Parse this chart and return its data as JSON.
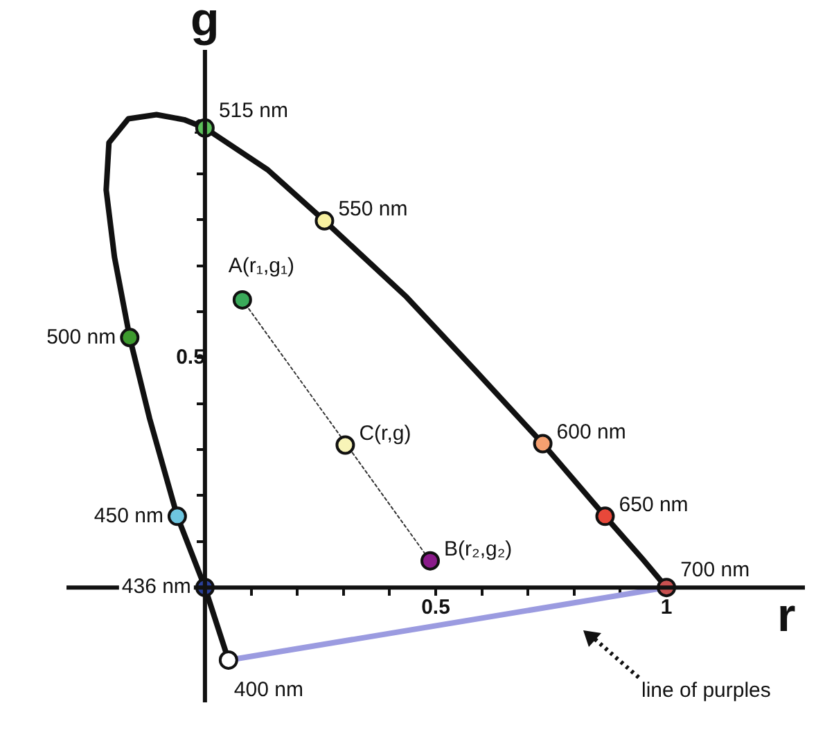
{
  "chart_data": {
    "type": "line",
    "xlabel": "r",
    "ylabel": "g",
    "xlim": [
      -0.3,
      1.3
    ],
    "ylim": [
      -0.25,
      1.17
    ],
    "xticks": [
      {
        "value": 0.1,
        "label": null
      },
      {
        "value": 0.2,
        "label": null
      },
      {
        "value": 0.3,
        "label": null
      },
      {
        "value": 0.4,
        "label": null
      },
      0.5,
      {
        "value": 0.6,
        "label": null
      },
      {
        "value": 0.7,
        "label": null
      },
      {
        "value": 0.8,
        "label": null
      },
      {
        "value": 0.9,
        "label": null
      },
      1
    ],
    "yticks": [
      {
        "value": 0.1,
        "label": null
      },
      {
        "value": 0.2,
        "label": null
      },
      {
        "value": 0.3,
        "label": null
      },
      {
        "value": 0.4,
        "label": null
      },
      0.5,
      {
        "value": 0.6,
        "label": null
      },
      {
        "value": 0.7,
        "label": null
      },
      {
        "value": 0.8,
        "label": null
      },
      {
        "value": 0.9,
        "label": null
      },
      1
    ],
    "grid": false,
    "legend": false,
    "series": [
      {
        "type": "line",
        "color": "#111111",
        "marker": "none",
        "x": [
          0.051,
          0,
          -0.06,
          -0.12,
          -0.163,
          -0.196,
          -0.214,
          -0.208,
          -0.166,
          -0.105,
          -0.045,
          0,
          0.136,
          0.259,
          0.437,
          0.587,
          0.732,
          0.867,
          0.949,
          1
        ],
        "values": [
          -0.158,
          0,
          0.155,
          0.368,
          0.544,
          0.719,
          0.865,
          0.968,
          1.02,
          1.029,
          1.018,
          1,
          0.909,
          0.798,
          0.632,
          0.471,
          0.313,
          0.155,
          0.061,
          0
        ]
      },
      {
        "type": "line",
        "color": "#9b9be0",
        "marker": "none",
        "x": [
          0.051,
          1
        ],
        "values": [
          -0.158,
          0
        ]
      },
      {
        "type": "line",
        "color": "#333333",
        "marker": "none",
        "line_style": "dotted",
        "x": [
          0.081,
          0.488
        ],
        "values": [
          0.626,
          0.058
        ]
      },
      {
        "type": "scatter",
        "marker": "circle",
        "x": [
          0.051,
          0,
          -0.06,
          -0.163,
          0,
          0.259,
          0.732,
          0.867,
          1
        ],
        "values": [
          -0.158,
          0,
          0.155,
          0.544,
          1,
          0.798,
          0.313,
          0.155,
          0
        ],
        "colors": [
          "#ffffff",
          "#2a3f9a",
          "#6ec6e0",
          "#3d9a2e",
          "#5cc05a",
          "#f7f0a0",
          "#f5a070",
          "#e8483a",
          "#c85050"
        ]
      },
      {
        "type": "scatter",
        "marker": "circle",
        "x": [
          0.081,
          0.304,
          0.488
        ],
        "values": [
          0.626,
          0.31,
          0.058
        ],
        "colors": [
          "#3aaa5a",
          "#f8f4b8",
          "#8a1a8a"
        ]
      }
    ],
    "annotations": [
      {
        "text": "400 nm",
        "x": 0.051,
        "y": -0.158
      },
      {
        "text": "436 nm",
        "x": 0,
        "y": 0
      },
      {
        "text": "450 nm",
        "x": -0.06,
        "y": 0.155
      },
      {
        "text": "500 nm",
        "x": -0.163,
        "y": 0.544
      },
      {
        "text": "515 nm",
        "x": 0,
        "y": 1
      },
      {
        "text": "550 nm",
        "x": 0.259,
        "y": 0.798
      },
      {
        "text": "600 nm",
        "x": 0.732,
        "y": 0.313
      },
      {
        "text": "650 nm",
        "x": 0.867,
        "y": 0.155
      },
      {
        "text": "700 nm",
        "x": 1,
        "y": 0
      },
      {
        "text": "A(r₁,g₁)",
        "x": 0.081,
        "y": 0.626
      },
      {
        "text": "C(r,g)",
        "x": 0.304,
        "y": 0.31
      },
      {
        "text": "B(r₂,g₂)",
        "x": 0.488,
        "y": 0.058
      },
      "line of purples"
    ]
  }
}
